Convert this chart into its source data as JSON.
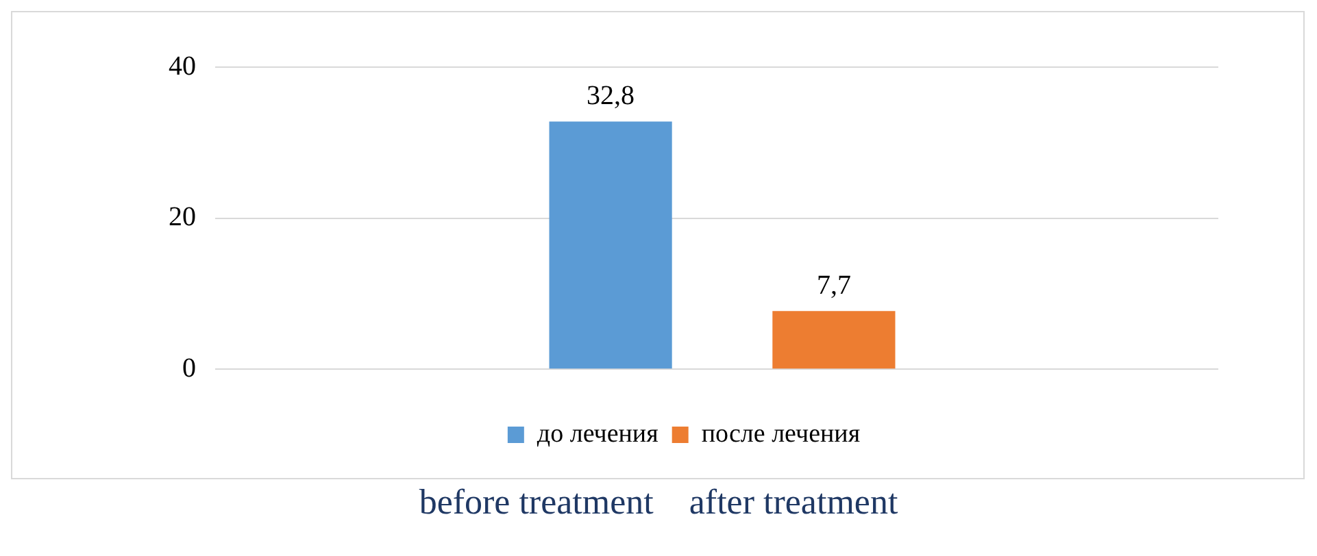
{
  "chart_data": {
    "type": "bar",
    "categories": [
      null
    ],
    "series": [
      {
        "name": "до лечения",
        "color": "#5b9bd5",
        "values": [
          32.8
        ],
        "value_labels": [
          "32,8"
        ]
      },
      {
        "name": "после лечения",
        "color": "#ed7d31",
        "values": [
          7.7
        ],
        "value_labels": [
          "7,7"
        ]
      }
    ],
    "ylim": [
      0,
      40
    ],
    "yticks": [
      0,
      20,
      40
    ],
    "grid": "y",
    "legend": "bottom",
    "annotations": [
      "before treatment    after treatment"
    ]
  }
}
